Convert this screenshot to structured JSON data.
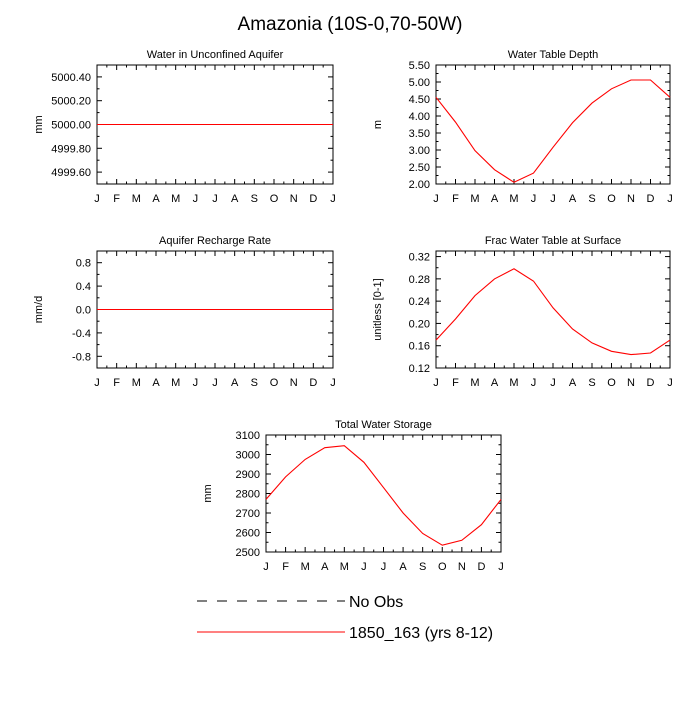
{
  "figure_title": "Amazonia (10S-0,70-50W)",
  "colors": {
    "series_line": "#ff0000",
    "axis": "#000000",
    "obs_line": "#000000"
  },
  "legend": {
    "placement": "bottom-center",
    "entries": [
      {
        "label": "No Obs",
        "style": "dashed",
        "color": "#000000"
      },
      {
        "label": "1850_163 (yrs 8-12)",
        "style": "solid",
        "color": "#ff0000"
      }
    ]
  },
  "chart_data": [
    {
      "type": "line",
      "title": "Water in Unconfined Aquifer",
      "ylabel": "mm",
      "xlabel": "",
      "x_ticklabels": [
        "J",
        "F",
        "M",
        "A",
        "M",
        "J",
        "J",
        "A",
        "S",
        "O",
        "N",
        "D",
        "J"
      ],
      "ylim": [
        4999.5,
        5000.5
      ],
      "yticks": [
        4999.6,
        4999.8,
        5000.0,
        5000.2,
        5000.4
      ],
      "ytick_labels": [
        "4999.60",
        "4999.80",
        "5000.00",
        "5000.20",
        "5000.40"
      ],
      "series": [
        {
          "values": [
            5000,
            5000,
            5000,
            5000,
            5000,
            5000,
            5000,
            5000,
            5000,
            5000,
            5000,
            5000,
            5000
          ]
        }
      ]
    },
    {
      "type": "line",
      "title": "Water Table Depth",
      "ylabel": "m",
      "xlabel": "",
      "x_ticklabels": [
        "J",
        "F",
        "M",
        "A",
        "M",
        "J",
        "J",
        "A",
        "S",
        "O",
        "N",
        "D",
        "J"
      ],
      "ylim": [
        2.0,
        5.5
      ],
      "yticks": [
        2.0,
        2.5,
        3.0,
        3.5,
        4.0,
        4.5,
        5.0,
        5.5
      ],
      "ytick_labels": [
        "2.00",
        "2.50",
        "3.00",
        "3.50",
        "4.00",
        "4.50",
        "5.00",
        "5.50"
      ],
      "series": [
        {
          "values": [
            4.55,
            3.82,
            2.98,
            2.42,
            2.05,
            2.32,
            3.08,
            3.8,
            4.38,
            4.8,
            5.06,
            5.06,
            4.55
          ]
        }
      ]
    },
    {
      "type": "line",
      "title": "Aquifer Recharge Rate",
      "ylabel": "mm/d",
      "xlabel": "",
      "x_ticklabels": [
        "J",
        "F",
        "M",
        "A",
        "M",
        "J",
        "J",
        "A",
        "S",
        "O",
        "N",
        "D",
        "J"
      ],
      "ylim": [
        -1.0,
        1.0
      ],
      "yticks": [
        -0.8,
        -0.4,
        0.0,
        0.4,
        0.8
      ],
      "ytick_labels": [
        "-0.8",
        "-0.4",
        "0.0",
        "0.4",
        "0.8"
      ],
      "series": [
        {
          "values": [
            0,
            0,
            0,
            0,
            0,
            0,
            0,
            0,
            0,
            0,
            0,
            0,
            0
          ]
        }
      ]
    },
    {
      "type": "line",
      "title": "Frac Water Table at Surface",
      "ylabel": "unitless [0-1]",
      "xlabel": "",
      "x_ticklabels": [
        "J",
        "F",
        "M",
        "A",
        "M",
        "J",
        "J",
        "A",
        "S",
        "O",
        "N",
        "D",
        "J"
      ],
      "ylim": [
        0.12,
        0.33
      ],
      "yticks": [
        0.12,
        0.16,
        0.2,
        0.24,
        0.28,
        0.32
      ],
      "ytick_labels": [
        "0.12",
        "0.16",
        "0.20",
        "0.24",
        "0.28",
        "0.32"
      ],
      "series": [
        {
          "values": [
            0.17,
            0.208,
            0.25,
            0.28,
            0.298,
            0.276,
            0.228,
            0.19,
            0.165,
            0.15,
            0.144,
            0.147,
            0.17
          ]
        }
      ]
    },
    {
      "type": "line",
      "title": "Total Water Storage",
      "ylabel": "mm",
      "xlabel": "",
      "x_ticklabels": [
        "J",
        "F",
        "M",
        "A",
        "M",
        "J",
        "J",
        "A",
        "S",
        "O",
        "N",
        "D",
        "J"
      ],
      "ylim": [
        2500,
        3100
      ],
      "yticks": [
        2500,
        2600,
        2700,
        2800,
        2900,
        3000,
        3100
      ],
      "ytick_labels": [
        "2500",
        "2600",
        "2700",
        "2800",
        "2900",
        "3000",
        "3100"
      ],
      "series": [
        {
          "values": [
            2770,
            2885,
            2975,
            3035,
            3045,
            2960,
            2830,
            2700,
            2595,
            2535,
            2560,
            2640,
            2770
          ]
        }
      ]
    }
  ]
}
